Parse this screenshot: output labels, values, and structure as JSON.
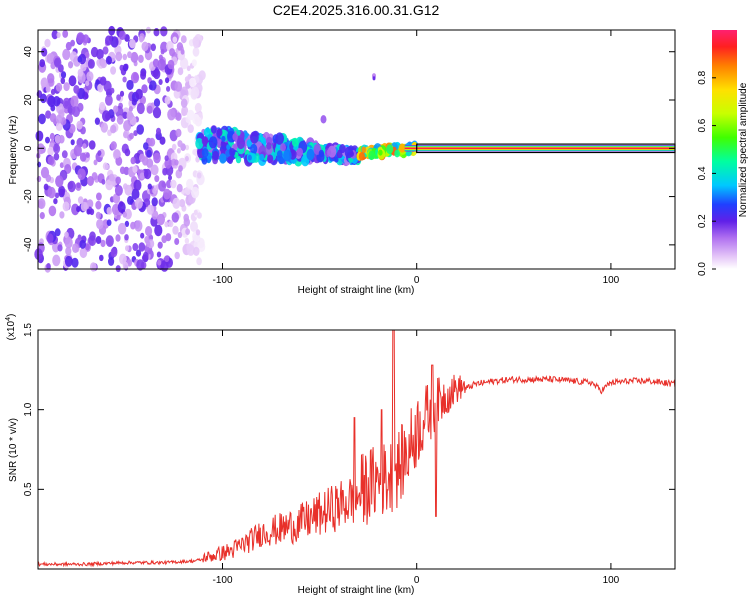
{
  "figure_title": "C2E4.2025.316.00.31.G12",
  "chart_data": [
    {
      "type": "heatmap",
      "title": "C2E4.2025.316.00.31.G12",
      "xlabel": "Height of straight line (km)",
      "ylabel": "Frequency (Hz)",
      "xlim": [
        -195,
        133
      ],
      "ylim": [
        -50,
        49
      ],
      "xticks": [
        -100,
        0,
        100
      ],
      "yticks": [
        -40,
        -20,
        0,
        20,
        40
      ],
      "xtick_labels": [
        "-100",
        "0",
        "100"
      ],
      "ytick_labels": [
        "-40",
        "-20",
        "0",
        "20",
        "40"
      ],
      "colorbar": {
        "label": "Normalized spectral amplitude",
        "range": [
          0,
          1
        ],
        "ticks": [
          0,
          0.2,
          0.4,
          0.6,
          0.8
        ],
        "tick_labels": [
          "0.0",
          "0.2",
          "0.4",
          "0.6",
          "0.8"
        ]
      },
      "features": [
        {
          "name": "scattered noise",
          "x_range": [
            -195,
            -110
          ],
          "freq_range": [
            -50,
            49
          ],
          "amplitude": [
            0.0,
            0.2
          ]
        },
        {
          "name": "noisy band",
          "x_range": [
            -110,
            -30
          ],
          "freq_center": [
            2,
            -3
          ],
          "amplitude": [
            0.1,
            0.45
          ]
        },
        {
          "name": "transition",
          "x_range": [
            -30,
            0
          ],
          "freq_center": [
            -2,
            0
          ],
          "amplitude": [
            0.3,
            0.9
          ]
        },
        {
          "name": "stable carrier line",
          "x_range": [
            0,
            133
          ],
          "freq_center": 0,
          "amplitude": 1.0
        }
      ]
    },
    {
      "type": "line",
      "xlabel": "Height of straight line (km)",
      "ylabel": "SNR (10 * v/v)",
      "y_multiplier": "(x10^4)",
      "y_multiplier_base": "(x10",
      "y_multiplier_exp": "4",
      "y_multiplier_close": ")",
      "xlim": [
        -195,
        133
      ],
      "ylim": [
        0,
        1.5
      ],
      "xticks": [
        -100,
        0,
        100
      ],
      "yticks": [
        0.5,
        1.0,
        1.5
      ],
      "xtick_labels": [
        "-100",
        "0",
        "100"
      ],
      "ytick_labels": [
        "0.5",
        "1.0",
        "1.5"
      ],
      "color": "#e8302a",
      "series": [
        {
          "name": "SNR",
          "x": [
            -195,
            -170,
            -150,
            -130,
            -115,
            -105,
            -95,
            -90,
            -85,
            -80,
            -70,
            -60,
            -50,
            -40,
            -30,
            -25,
            -20,
            -15,
            -10,
            -5,
            0,
            5,
            10,
            15,
            20,
            25,
            30,
            40,
            50,
            60,
            70,
            80,
            90,
            95,
            100,
            110,
            120,
            133
          ],
          "values": [
            0.03,
            0.03,
            0.04,
            0.04,
            0.05,
            0.07,
            0.1,
            0.13,
            0.16,
            0.2,
            0.22,
            0.25,
            0.3,
            0.35,
            0.4,
            0.45,
            0.48,
            0.5,
            0.55,
            0.65,
            0.8,
            0.9,
            0.98,
            1.05,
            1.1,
            1.13,
            1.16,
            1.18,
            1.19,
            1.19,
            1.19,
            1.18,
            1.17,
            1.12,
            1.17,
            1.18,
            1.18,
            1.16
          ]
        }
      ],
      "spikes": [
        {
          "x": -12,
          "value": 1.5
        },
        {
          "x": 8,
          "value": 1.28
        },
        {
          "x": -18,
          "value": 1.0
        },
        {
          "x": -32,
          "value": 0.95
        },
        {
          "x": 10,
          "value": 0.33
        }
      ]
    }
  ]
}
